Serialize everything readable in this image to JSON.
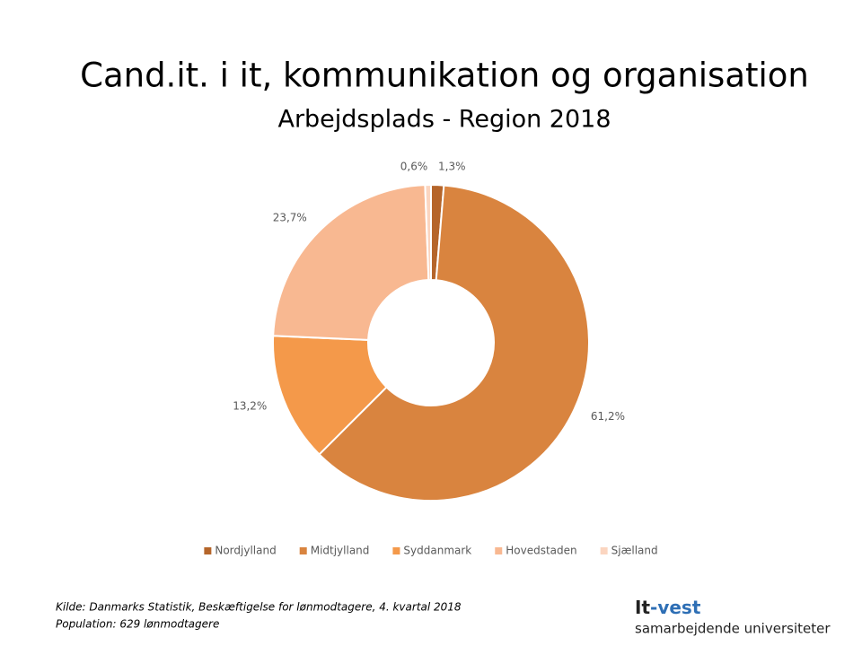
{
  "chart_data": {
    "type": "donut",
    "title": "Cand.it. i it, kommunikation og organisation",
    "subtitle": "Arbejdsplads - Region 2018",
    "categories": [
      "Nordjylland",
      "Midtjylland",
      "Syddanmark",
      "Hovedstaden",
      "Sjælland"
    ],
    "values": [
      1.3,
      61.2,
      13.2,
      23.7,
      0.6
    ],
    "value_labels": [
      "1,3%",
      "61,2%",
      "13,2%",
      "23,7%",
      "0,6%"
    ],
    "colors": [
      "#b5652a",
      "#d9843f",
      "#f4994a",
      "#f8b891",
      "#fbd5c0"
    ],
    "legend": "bottom"
  },
  "footer": {
    "source": "Kilde: Danmarks Statistik, Beskæftigelse for lønmodtagere, 4. kvartal 2018",
    "population": "Population: 629 lønmodtagere"
  },
  "logo": {
    "part1": "It",
    "part2": "-vest",
    "tagline": "samarbejdende universiteter"
  }
}
